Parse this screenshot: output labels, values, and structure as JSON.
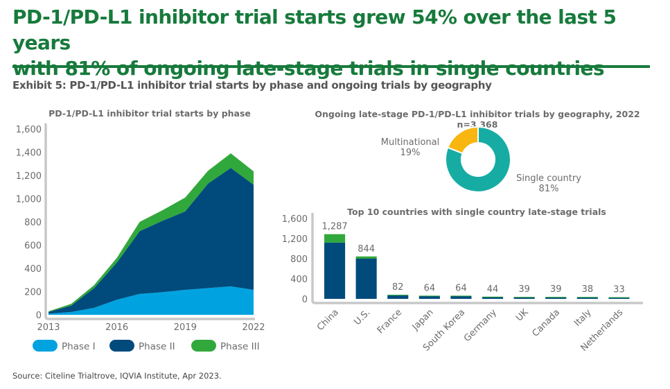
{
  "headline": {
    "line1": "PD-1/PD-L1 inhibitor trial starts grew 54% over the last 5 years",
    "line2": "with 81% of ongoing late-stage trials in single countries"
  },
  "exhibit_title": "Exhibit 5: PD-1/PD-L1 inhibitor trial starts by phase and ongoing trials by geography",
  "source": "Source: Citeline Trialtrove, IQVIA Institute, Apr 2023.",
  "colors": {
    "brand_green": "#177a3c",
    "phase1": "#00a3e0",
    "phase2": "#004b7c",
    "phase3": "#31a83c",
    "single_country": "#16aca4",
    "multinational": "#f9b510",
    "axis": "#c8c8c8",
    "text": "#6b6b6b"
  },
  "chart_data": [
    {
      "type": "area",
      "stacked": true,
      "title": "PD-1/PD-L1 inhibitor trial starts by phase",
      "xlabel": "",
      "ylabel": "",
      "x": [
        2013,
        2014,
        2015,
        2016,
        2017,
        2018,
        2019,
        2020,
        2021,
        2022
      ],
      "x_ticks": [
        "2013",
        "2016",
        "2019",
        "2022"
      ],
      "x_tick_values": [
        2013,
        2016,
        2019,
        2022
      ],
      "y_ticks": [
        "0",
        "200",
        "400",
        "600",
        "800",
        "1,000",
        "1,200",
        "1,400",
        "1,600"
      ],
      "y_tick_values": [
        0,
        200,
        400,
        600,
        800,
        1000,
        1200,
        1400,
        1600
      ],
      "ylim": [
        0,
        1600
      ],
      "grid": false,
      "legend_position": "bottom",
      "series": [
        {
          "name": "Phase I",
          "values": [
            10,
            25,
            60,
            130,
            180,
            195,
            215,
            230,
            245,
            215
          ]
        },
        {
          "name": "Phase II",
          "values": [
            15,
            55,
            170,
            320,
            540,
            615,
            675,
            900,
            1020,
            905
          ]
        },
        {
          "name": "Phase III",
          "values": [
            5,
            15,
            25,
            40,
            80,
            90,
            120,
            110,
            125,
            115
          ]
        }
      ]
    },
    {
      "type": "pie",
      "donut": true,
      "title": "Ongoing late-stage PD-1/PD-L1 inhibitor trials by geography, 2022",
      "subtitle": "n=3,368",
      "slices": [
        {
          "label": "Single country",
          "value": 81,
          "value_label": "81%"
        },
        {
          "label": "Multinational",
          "value": 19,
          "value_label": "19%"
        }
      ]
    },
    {
      "type": "bar",
      "stacked": true,
      "title": "Top 10 countries with single country late-stage trials",
      "categories": [
        "China",
        "U.S.",
        "France",
        "Japan",
        "South Korea",
        "Germany",
        "UK",
        "Canada",
        "Italy",
        "Netherlands"
      ],
      "values": [
        1287,
        844,
        82,
        64,
        64,
        44,
        39,
        39,
        38,
        33
      ],
      "value_labels": [
        "1,287",
        "844",
        "82",
        "64",
        "64",
        "44",
        "39",
        "39",
        "38",
        "33"
      ],
      "series": [
        {
          "name": "Phase II",
          "values": [
            1120,
            800,
            68,
            58,
            58,
            40,
            35,
            35,
            34,
            30
          ]
        },
        {
          "name": "Phase III",
          "values": [
            167,
            44,
            14,
            6,
            6,
            4,
            4,
            4,
            4,
            3
          ]
        }
      ],
      "y_ticks": [
        "0",
        "400",
        "800",
        "1,200",
        "1,600"
      ],
      "y_tick_values": [
        0,
        400,
        800,
        1200,
        1600
      ],
      "ylim": [
        0,
        1600
      ],
      "grid": false
    }
  ]
}
